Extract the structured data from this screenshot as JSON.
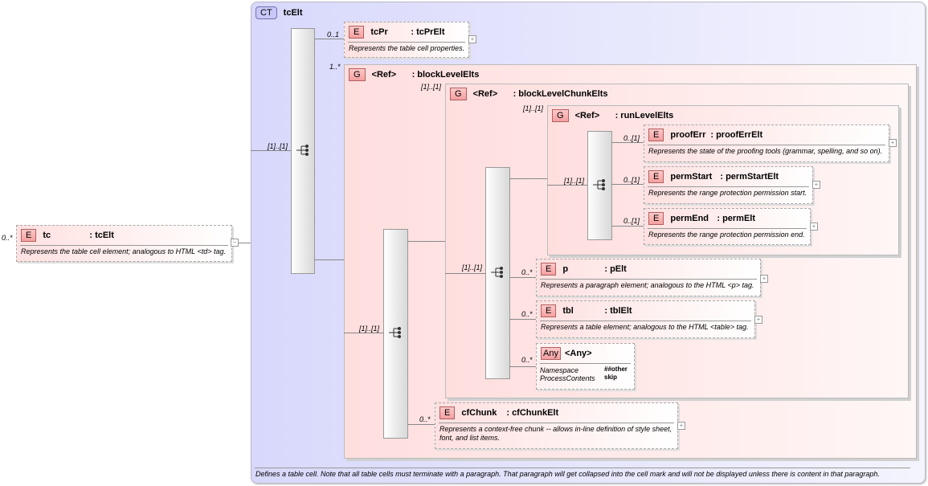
{
  "root": {
    "card": "0..*",
    "badge": "E",
    "name": "tc",
    "type": ": tcElt",
    "desc": "Represents the table cell element; analogous to HTML <td> tag."
  },
  "complex_type": {
    "badge": "CT",
    "name": "tcElt",
    "footer": "Defines a table cell. Note that all table cells must terminate with a paragraph. That paragraph will get collapsed into the cell mark and will not be displayed unless there is content in that paragraph."
  },
  "sequences": [
    "[1]..[1]",
    "[1]..[1]",
    "[1]..[1]",
    "[1]..[1]"
  ],
  "tcPr": {
    "card": "0..1",
    "badge": "E",
    "name": "tcPr",
    "type": ": tcPrElt",
    "desc": "Represents the table cell properties."
  },
  "blockLevelElts": {
    "card": "1..*",
    "badge": "G",
    "name": "<Ref>",
    "type": ": blockLevelElts"
  },
  "blockLevelChunkElts": {
    "card": "[1]..[1]",
    "badge": "G",
    "name": "<Ref>",
    "type": ": blockLevelChunkElts"
  },
  "runLevelElts": {
    "card": "[1]..[1]",
    "badge": "G",
    "name": "<Ref>",
    "type": ": runLevelElts"
  },
  "proofErr": {
    "card": "0..[1]",
    "badge": "E",
    "name": "proofErr",
    "type": ": proofErrElt",
    "desc": "Represents the state of the proofing tools (grammar, spelling, and so on)."
  },
  "permStart": {
    "card": "0..[1]",
    "badge": "E",
    "name": "permStart",
    "type": ": permStartElt",
    "desc": "Represents the range protection permission start."
  },
  "permEnd": {
    "card": "0..[1]",
    "badge": "E",
    "name": "permEnd",
    "type": ": permElt",
    "desc": "Represents the range protection permission end."
  },
  "p": {
    "card": "0..*",
    "badge": "E",
    "name": "p",
    "type": ": pElt",
    "desc": "Represents a paragraph element; analogous to the HTML <p> tag."
  },
  "tbl": {
    "card": "0..*",
    "badge": "E",
    "name": "tbl",
    "type": ": tblElt",
    "desc": "Represents a table element; analogous to the HTML <table> tag."
  },
  "any": {
    "card": "0..*",
    "badge": "Any",
    "name": "<Any>",
    "ns_label": "Namespace",
    "ns_value": "##other",
    "pc_label": "ProcessContents",
    "pc_value": "skip"
  },
  "cfChunk": {
    "card": "0..*",
    "badge": "E",
    "name": "cfChunk",
    "type": ": cfChunkElt",
    "desc": "Represents a context-free chunk -- allows in-line definition of style sheet, font, and list items."
  }
}
